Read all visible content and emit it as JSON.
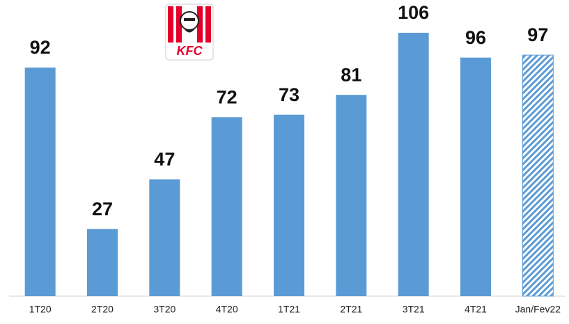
{
  "chart_data": {
    "type": "bar",
    "logo": "KFC",
    "categories": [
      "1T20",
      "2T20",
      "3T20",
      "4T20",
      "1T21",
      "2T21",
      "3T21",
      "4T21",
      "Jan/Fev22"
    ],
    "values": [
      92,
      27,
      47,
      72,
      73,
      81,
      106,
      96,
      97
    ],
    "color": "#5b9bd5",
    "hatched": [
      false,
      false,
      false,
      false,
      false,
      false,
      false,
      false,
      true
    ]
  }
}
